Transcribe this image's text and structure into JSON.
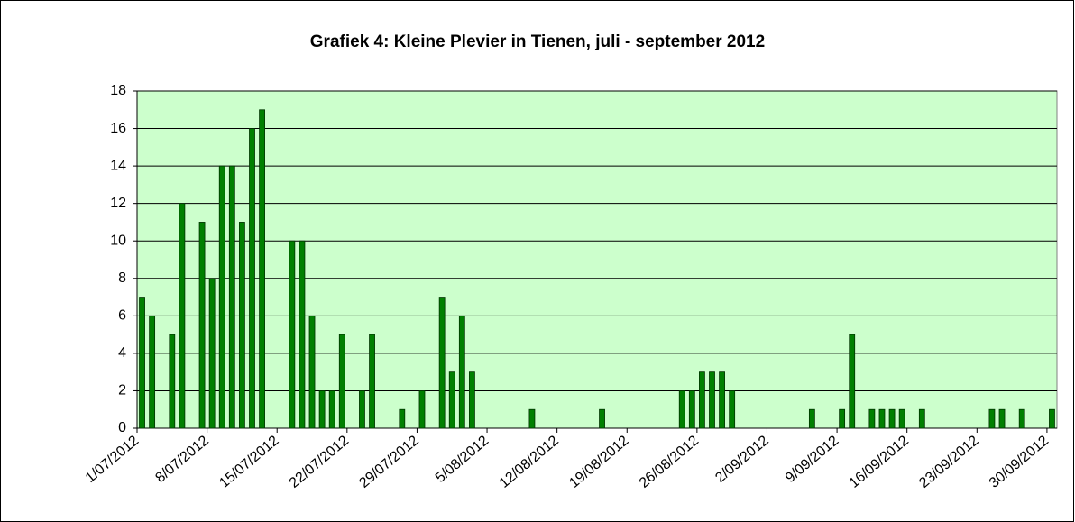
{
  "chart_data": {
    "type": "bar",
    "title": "Grafiek 4: Kleine Plevier in Tienen, juli - september 2012",
    "categories": [
      "1/07/2012",
      null,
      null,
      null,
      null,
      null,
      null,
      "8/07/2012",
      null,
      null,
      null,
      null,
      null,
      null,
      "15/07/2012",
      null,
      null,
      null,
      null,
      null,
      null,
      "22/07/2012",
      null,
      null,
      null,
      null,
      null,
      null,
      "29/07/2012",
      null,
      null,
      null,
      null,
      null,
      null,
      "5/08/2012",
      null,
      null,
      null,
      null,
      null,
      null,
      "12/08/2012",
      null,
      null,
      null,
      null,
      null,
      null,
      "19/08/2012",
      null,
      null,
      null,
      null,
      null,
      null,
      "26/08/2012",
      null,
      null,
      null,
      null,
      null,
      null,
      "2/09/2012",
      null,
      null,
      null,
      null,
      null,
      null,
      "9/09/2012",
      null,
      null,
      null,
      null,
      null,
      null,
      "16/09/2012",
      null,
      null,
      null,
      null,
      null,
      null,
      "23/09/2012",
      null,
      null,
      null,
      null,
      null,
      null,
      "30/09/2012"
    ],
    "values": [
      7,
      6,
      0,
      5,
      12,
      0,
      11,
      8,
      14,
      14,
      11,
      16,
      17,
      0,
      0,
      10,
      10,
      6,
      2,
      2,
      5,
      0,
      2,
      5,
      0,
      0,
      1,
      0,
      2,
      0,
      7,
      3,
      6,
      3,
      0,
      0,
      0,
      0,
      0,
      1,
      0,
      0,
      0,
      0,
      0,
      0,
      1,
      0,
      0,
      0,
      0,
      0,
      0,
      0,
      2,
      2,
      3,
      3,
      3,
      2,
      0,
      0,
      0,
      0,
      0,
      0,
      0,
      1,
      0,
      0,
      1,
      5,
      0,
      1,
      1,
      1,
      1,
      0,
      1,
      0,
      0,
      0,
      0,
      0,
      0,
      1,
      1,
      0,
      1,
      0,
      0,
      1
    ],
    "color": "#008000",
    "ylim": [
      0,
      18
    ],
    "yticks": [
      0,
      2,
      4,
      6,
      8,
      10,
      12,
      14,
      16,
      18
    ],
    "grid": true
  }
}
